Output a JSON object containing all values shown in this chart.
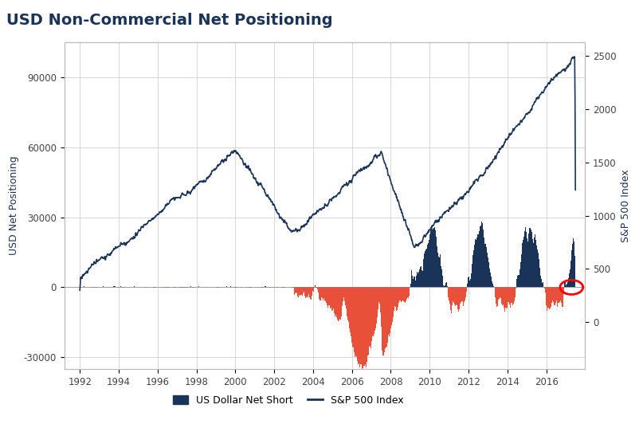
{
  "title": "USD Non-Commercial Net Positioning",
  "title_color": "#1a3358",
  "background_color": "#ffffff",
  "grid_color": "#d0d0d0",
  "ylabel_left": "USD Net Positioning",
  "ylabel_right": "S&P 500 Index",
  "bar_color_pos": "#1a3358",
  "bar_color_neg": "#e8503a",
  "line_color": "#1a3358",
  "ylim_left": [
    -35000,
    105000
  ],
  "ylim_right": [
    -437,
    2625
  ],
  "yticks_left": [
    -30000,
    0,
    30000,
    60000,
    90000
  ],
  "yticks_right": [
    0,
    500,
    1000,
    1500,
    2000,
    2500
  ],
  "xlim": [
    1991.2,
    2018.0
  ],
  "xtick_years": [
    1992,
    1994,
    1996,
    1998,
    2000,
    2002,
    2004,
    2006,
    2008,
    2010,
    2012,
    2014,
    2016
  ],
  "legend_bar_label": "US Dollar Net Short",
  "legend_line_label": "S&P 500 Index"
}
